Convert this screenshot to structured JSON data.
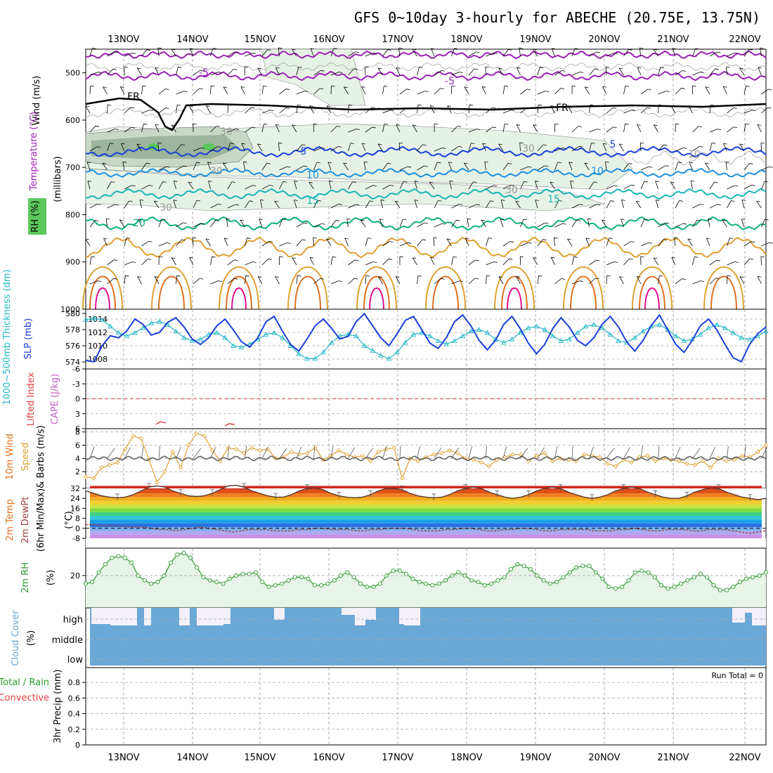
{
  "title": "GFS 0~10day 3-hourly for ABECHE (20.75E, 13.75N)",
  "colors": {
    "purple": "#9b20b5",
    "black": "#000000",
    "blue": "#1a3fd8",
    "lightblue": "#1e90e0",
    "teal": "#1ab5b5",
    "green": "#10b080",
    "orange": "#e0a030",
    "darkorange": "#e07020",
    "magenta": "#e01090",
    "rhfill": "#e6f2e6",
    "rhfill2": "#c7d8c7",
    "rhfill3": "#9cb59c",
    "slp": "#1a3fd8",
    "thick": "#22b8c8",
    "cloud": "#6aa8d8",
    "cloudclear": "#f4f0fa",
    "wind": "#e0a030",
    "rh2m": "#2a9a2a",
    "rh2mfill": "#e8f4e8"
  },
  "chart_data": [
    {
      "type": "line",
      "panel": "upper-air",
      "title": "GFS 0~10day 3-hourly for ABECHE (20.75E, 13.75N)",
      "x": [
        "13NOV",
        "14NOV",
        "15NOV",
        "16NOV",
        "17NOV",
        "18NOV",
        "19NOV",
        "20NOV",
        "21NOV",
        "22NOV"
      ],
      "ylabel": "(millibars)",
      "ylim": [
        1000,
        450
      ],
      "yticks": [
        "500",
        "600",
        "700",
        "800",
        "900",
        "1000"
      ],
      "side_labels": [
        "Wind (m/s)",
        "Temperature (°C)",
        "RH (%)"
      ],
      "series": [
        {
          "name": "-5",
          "labels": [
            "-5",
            "-5"
          ]
        },
        {
          "name": "FR",
          "labels": [
            "FR",
            "FR"
          ]
        },
        {
          "name": "5",
          "labels": [
            "5",
            "5"
          ]
        },
        {
          "name": "10",
          "labels": [
            "10",
            "10"
          ]
        },
        {
          "name": "15",
          "labels": [
            "15",
            "15"
          ]
        },
        {
          "name": "20",
          "labels": [
            "20"
          ]
        },
        {
          "name": "RH 30",
          "labels": [
            "30",
            "30",
            "30",
            "30",
            "30",
            "10"
          ]
        }
      ]
    },
    {
      "type": "line",
      "panel": "slp-thickness",
      "ylabel_left": "1000~500mb Thickness (dm)",
      "ylabel_right": "SLP (mb)",
      "yticks_left": [
        "574",
        "576",
        "578",
        "580"
      ],
      "yticks_right": [
        "1008",
        "1010",
        "1012",
        "1014"
      ],
      "series": [
        {
          "name": "SLP",
          "values": [
            1007.8,
            1007.6,
            1010.0,
            1011.5,
            1011.2,
            1012.2,
            1014.0,
            1013.2,
            1011.6,
            1012.0,
            1013.5,
            1014.2,
            1012.8,
            1011.0,
            1010.2,
            1011.2,
            1013.0,
            1014.0,
            1012.4,
            1010.6,
            1009.8,
            1011.2,
            1013.6,
            1014.4,
            1012.2,
            1010.2,
            1009.2,
            1011.0,
            1013.0,
            1014.0,
            1012.6,
            1011.0,
            1011.4,
            1013.6,
            1014.8,
            1013.0,
            1011.2,
            1010.0,
            1011.8,
            1013.8,
            1014.4,
            1012.4,
            1010.4,
            1009.6,
            1011.2,
            1013.6,
            1014.6,
            1013.0,
            1010.8,
            1009.4,
            1010.8,
            1013.2,
            1014.4,
            1012.6,
            1010.4,
            1008.8,
            1010.2,
            1012.6,
            1014.2,
            1012.8,
            1010.8,
            1010.0,
            1011.2,
            1013.2,
            1014.4,
            1012.8,
            1010.6,
            1009.2,
            1010.8,
            1013.0,
            1014.6,
            1012.4,
            1010.2,
            1009.0,
            1010.8,
            1013.0,
            1014.0,
            1012.4,
            1010.2,
            1008.2,
            1007.6,
            1010.2,
            1011.8,
            1012.8
          ]
        },
        {
          "name": "Thickness",
          "values": [
            579.2,
            579.4,
            579.2,
            578.4,
            577.6,
            577.2,
            577.6,
            578.2,
            578.8,
            579.0,
            578.6,
            577.8,
            577.0,
            576.6,
            576.8,
            577.4,
            577.6,
            577.0,
            576.0,
            575.8,
            576.2,
            576.8,
            577.4,
            577.6,
            577.0,
            576.0,
            575.0,
            574.4,
            574.4,
            575.2,
            576.4,
            577.2,
            577.4,
            577.2,
            576.0,
            575.4,
            574.8,
            574.4,
            575.2,
            576.4,
            577.4,
            577.6,
            577.2,
            576.6,
            576.2,
            576.6,
            577.2,
            577.8,
            578.0,
            577.6,
            576.8,
            576.4,
            576.8,
            577.6,
            578.2,
            578.4,
            578.0,
            577.2,
            576.6,
            576.8,
            577.6,
            578.4,
            578.6,
            578.2,
            577.4,
            576.6,
            576.4,
            577.0,
            577.8,
            578.4,
            578.6,
            578.0,
            577.2,
            576.6,
            576.8,
            577.4,
            578.2,
            578.6,
            578.2,
            577.6,
            577.0,
            576.8,
            577.2,
            577.8
          ]
        }
      ]
    },
    {
      "type": "line",
      "panel": "lifted-index",
      "ylabel": "Lifted Index",
      "ylabel2": "CAPE (J/kg)",
      "yticks": [
        "-6",
        "-3",
        "0",
        "3",
        "6"
      ]
    },
    {
      "type": "line",
      "panel": "wind-10m",
      "ylabel": "10m Wind Speed & Barbs (m/s)",
      "yticks": [
        "2",
        "4",
        "6",
        "8"
      ],
      "series": [
        {
          "name": "Speed",
          "values": [
            1.2,
            1.0,
            2.6,
            3.0,
            3.4,
            5.4,
            7.4,
            7.0,
            3.8,
            0.4,
            2.0,
            5.0,
            2.6,
            6.0,
            7.8,
            7.4,
            5.2,
            3.6,
            5.6,
            5.4,
            4.8,
            5.6,
            5.2,
            5.4,
            4.0,
            4.2,
            5.0,
            4.6,
            4.8,
            5.6,
            3.8,
            4.4,
            5.2,
            4.6,
            4.2,
            4.4,
            3.6,
            5.0,
            5.4,
            5.6,
            1.0,
            4.0,
            3.6,
            4.2,
            4.6,
            4.8,
            5.2,
            4.8,
            4.0,
            3.8,
            3.4,
            2.8,
            3.8,
            4.2,
            4.6,
            4.6,
            3.6,
            4.4,
            4.8,
            3.6,
            4.0,
            3.8,
            3.6,
            4.6,
            4.4,
            4.2,
            3.2,
            2.8,
            3.8,
            3.4,
            4.2,
            4.4,
            3.6,
            4.0,
            3.8,
            3.6,
            3.2,
            3.0,
            3.6,
            2.6,
            4.0,
            3.6,
            3.8,
            4.4,
            4.2,
            5.0,
            6.0
          ]
        }
      ]
    },
    {
      "type": "area",
      "panel": "temp-2m",
      "ylabel": "2m Temp 2m DewPt (6hr Min/Max) (°C)",
      "yticks": [
        "-8",
        "0",
        "8",
        "16",
        "24",
        "32"
      ],
      "series": [
        {
          "name": "2m Temp",
          "values": [
            30,
            28,
            26,
            25,
            24.5,
            25,
            27,
            30,
            33,
            34,
            33,
            30,
            28,
            26,
            25.5,
            26,
            28,
            31,
            34,
            34.5,
            33,
            30,
            28,
            26,
            25,
            25,
            27,
            30,
            32,
            32.5,
            31,
            28,
            26,
            25,
            24.5,
            25,
            27,
            30,
            32,
            32,
            31,
            28,
            26,
            25,
            24.5,
            25,
            27,
            30,
            32,
            33,
            32,
            29,
            27,
            25,
            24,
            25,
            27,
            30,
            32,
            33,
            32,
            29,
            27,
            25,
            24,
            25,
            27,
            30,
            32,
            33,
            32,
            29,
            27,
            25,
            24,
            24,
            26,
            29,
            31,
            32.5,
            32,
            29,
            27,
            25,
            24,
            23,
            24
          ]
        },
        {
          "name": "2m DewPt",
          "values": [
            3,
            3,
            2,
            2,
            2,
            1,
            1,
            1,
            0,
            -1,
            -1,
            -2,
            -1,
            0,
            1,
            0,
            -1,
            -2,
            -3,
            -2,
            -1,
            -1,
            -1,
            -2,
            -2,
            -2,
            -1,
            -1,
            0,
            0,
            -1,
            -1,
            -1,
            -2,
            -2,
            -1,
            -1,
            0,
            0,
            0,
            -1,
            -2,
            -2,
            -2,
            -1,
            -1,
            0,
            0,
            -1,
            -2,
            -2,
            -1,
            -1,
            0,
            0,
            -1,
            -2,
            -2,
            -1,
            -1,
            -1,
            -1,
            -2,
            -2,
            -2,
            -1,
            -1,
            0,
            -1,
            -2,
            -2,
            -1,
            -1,
            -1,
            -2,
            -2,
            -1,
            -1,
            -1,
            -2,
            -3,
            -4,
            -3,
            -2
          ]
        }
      ]
    },
    {
      "type": "area",
      "panel": "rh-2m",
      "ylabel": "2m RH (%)",
      "yticks": [
        "20"
      ],
      "series": [
        {
          "name": "2m RH",
          "values": [
            15,
            16,
            22,
            27,
            31,
            32,
            31,
            28,
            20,
            17,
            15,
            16,
            20,
            28,
            33,
            34,
            31,
            25,
            19,
            17,
            16,
            15,
            18,
            20,
            21,
            21,
            22,
            16,
            13,
            14,
            15,
            17,
            19,
            19,
            18,
            14,
            14,
            15,
            17,
            20,
            22,
            19,
            15,
            13,
            13,
            15,
            20,
            23,
            23,
            21,
            18,
            16,
            15,
            14,
            15,
            17,
            20,
            22,
            20,
            17,
            16,
            14,
            15,
            17,
            19,
            24,
            27,
            26,
            24,
            20,
            17,
            15,
            16,
            19,
            22,
            25,
            26,
            26,
            22,
            18,
            13,
            12,
            13,
            17,
            22,
            23,
            22,
            19,
            14,
            12,
            13,
            15,
            17,
            19,
            21,
            19,
            14,
            11,
            11,
            13,
            16,
            18,
            19,
            20,
            22
          ]
        }
      ]
    },
    {
      "type": "area",
      "panel": "cloud-cover",
      "ylabel": "Cloud Cover (%)",
      "yticks": [
        "high",
        "middle",
        "low"
      ]
    },
    {
      "type": "bar",
      "panel": "precip-3hr",
      "ylabel": "3hr Precip (mm)",
      "side_labels": [
        "Total / Rain",
        "Convective"
      ],
      "yticks": [
        "0",
        "0.2",
        "0.4",
        "0.6",
        "0.8"
      ],
      "ylim": [
        0,
        0.9
      ],
      "run_total": "Run Total = 0",
      "values": []
    }
  ]
}
